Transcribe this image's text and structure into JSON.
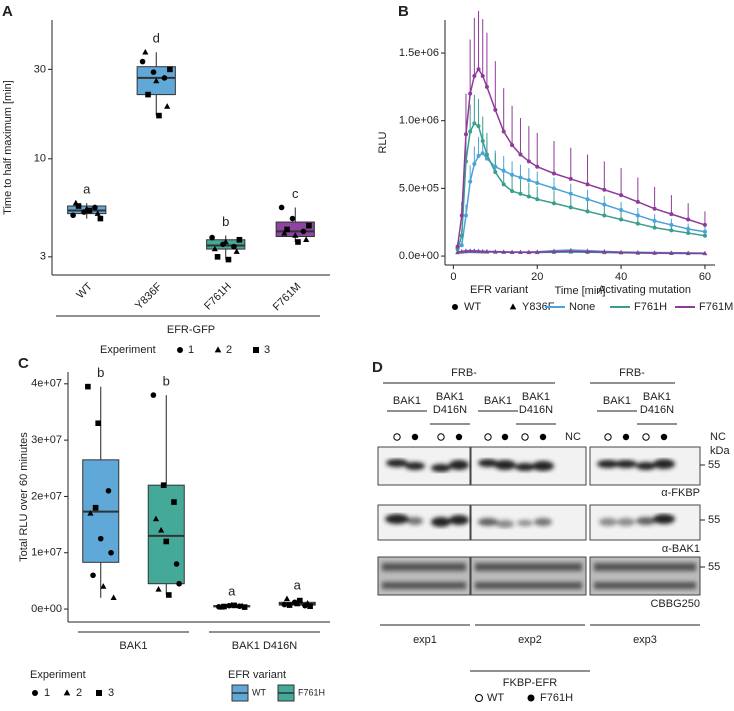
{
  "chart_data": [
    {
      "type": "box",
      "panel": "A",
      "y_label": "Time to half maximum [min]",
      "log_scale": true,
      "ylim": [
        2.4,
        55
      ],
      "yticks": [
        3,
        10,
        30
      ],
      "categories": [
        "WT",
        "Y836F",
        "F761H",
        "F761M"
      ],
      "boxes": [
        {
          "min": 4.8,
          "q1": 5.1,
          "median": 5.3,
          "q3": 5.6,
          "max": 5.8,
          "color": "#5fa8d8"
        },
        {
          "min": 17,
          "q1": 22,
          "median": 27,
          "q3": 31,
          "max": 37,
          "color": "#5fa8d8"
        },
        {
          "min": 2.9,
          "q1": 3.3,
          "median": 3.45,
          "q3": 3.7,
          "max": 3.9,
          "color": "#45a99a"
        },
        {
          "min": 3.6,
          "q1": 3.85,
          "median": 4.1,
          "q3": 4.6,
          "max": 5.5,
          "color": "#8e44a0"
        }
      ],
      "points": [
        {
          "values": [
            5.0,
            5.2,
            5.5,
            5.8,
            5.4,
            5.1,
            5.6,
            5.3,
            4.8
          ],
          "experiment": [
            1,
            1,
            1,
            2,
            2,
            2,
            3,
            3,
            3
          ]
        },
        {
          "values": [
            33,
            29,
            27,
            37,
            26,
            19,
            22,
            17,
            30
          ],
          "experiment": [
            1,
            1,
            1,
            2,
            2,
            2,
            3,
            3,
            3
          ]
        },
        {
          "values": [
            3.8,
            3.5,
            3.4,
            3.3,
            3.6,
            3.2,
            3.0,
            2.9,
            3.7
          ],
          "experiment": [
            1,
            1,
            1,
            2,
            2,
            2,
            3,
            3,
            3
          ]
        },
        {
          "values": [
            5.5,
            4.8,
            4.1,
            4.0,
            3.9,
            3.7,
            4.2,
            3.6,
            4.4
          ],
          "experiment": [
            1,
            1,
            1,
            2,
            2,
            2,
            3,
            3,
            3
          ]
        }
      ],
      "letters": [
        "a",
        "d",
        "b",
        "c"
      ],
      "group_label": "EFR-GFP",
      "legend": {
        "title": "Experiment",
        "labels": [
          "1",
          "2",
          "3"
        ]
      }
    },
    {
      "type": "line",
      "panel": "B",
      "x_label": "Time [min]",
      "y_label": "RLU",
      "xlim": [
        -2,
        62.4
      ],
      "xticks": [
        0,
        20,
        40,
        60
      ],
      "ylim": [
        -66000,
        1744000
      ],
      "yticks": [
        {
          "value": 0,
          "label": "0.0e+00"
        },
        {
          "value": 500000,
          "label": "5.0e+05"
        },
        {
          "value": 1000000,
          "label": "1.0e+06"
        },
        {
          "value": 1500000,
          "label": "1.5e+06"
        }
      ],
      "x": [
        1,
        2,
        3,
        4,
        5,
        6,
        7,
        8,
        10,
        12,
        14,
        16,
        18,
        20,
        24,
        28,
        32,
        36,
        40,
        44,
        48,
        52,
        56,
        60
      ],
      "series": [
        {
          "name": "None",
          "color": "#4aa3d9",
          "values": [
            60000,
            80000,
            300000,
            550000,
            680000,
            740000,
            760000,
            720000,
            660000,
            630000,
            600000,
            580000,
            560000,
            540000,
            500000,
            460000,
            420000,
            380000,
            340000,
            300000,
            260000,
            230000,
            200000,
            180000
          ],
          "errors": [
            20000,
            30000,
            80000,
            120000,
            130000,
            140000,
            140000,
            130000,
            120000,
            110000,
            100000,
            95000,
            90000,
            85000,
            80000,
            75000,
            70000,
            65000,
            60000,
            55000,
            50000,
            45000,
            40000,
            38000
          ],
          "values_y836f": [
            30000,
            35000,
            40000,
            40000,
            40000,
            38000,
            36000,
            35000,
            34000,
            32000,
            30000,
            30000,
            30000,
            32000,
            40000,
            45000,
            40000,
            35000,
            30000,
            28000,
            26000,
            25000,
            24000,
            22000
          ]
        },
        {
          "name": "F761H",
          "color": "#3a9e8d",
          "values": [
            50000,
            150000,
            700000,
            920000,
            980000,
            960000,
            850000,
            750000,
            620000,
            530000,
            480000,
            460000,
            440000,
            420000,
            390000,
            360000,
            330000,
            300000,
            270000,
            240000,
            210000,
            190000,
            170000,
            150000
          ],
          "errors": [
            20000,
            50000,
            150000,
            200000,
            210000,
            200000,
            180000,
            160000,
            140000,
            120000,
            110000,
            105000,
            100000,
            95000,
            90000,
            85000,
            80000,
            75000,
            70000,
            65000,
            60000,
            55000,
            50000,
            45000
          ],
          "values_y836f": [
            25000,
            30000,
            32000,
            34000,
            33000,
            32000,
            31000,
            30000,
            29000,
            28000,
            27000,
            27000,
            26000,
            26000,
            28000,
            30000,
            28000,
            26000,
            24000,
            22000,
            21000,
            20000,
            19000,
            18000
          ]
        },
        {
          "name": "F761M",
          "color": "#8e3a9a",
          "values": [
            70000,
            300000,
            900000,
            1200000,
            1330000,
            1380000,
            1330000,
            1250000,
            1080000,
            920000,
            820000,
            750000,
            700000,
            660000,
            610000,
            570000,
            530000,
            490000,
            450000,
            400000,
            350000,
            310000,
            270000,
            230000
          ],
          "errors": [
            30000,
            100000,
            300000,
            400000,
            430000,
            430000,
            420000,
            400000,
            360000,
            320000,
            290000,
            270000,
            260000,
            250000,
            240000,
            230000,
            220000,
            210000,
            200000,
            180000,
            160000,
            140000,
            120000,
            100000
          ],
          "values_y836f": [
            28000,
            32000,
            36000,
            37000,
            36000,
            35000,
            34000,
            33000,
            32000,
            30000,
            29000,
            28000,
            28000,
            29000,
            33000,
            36000,
            33000,
            30000,
            27000,
            25000,
            23000,
            22000,
            21000,
            20000
          ]
        }
      ],
      "shape_legend": {
        "title": "EFR variant",
        "labels": [
          "WT",
          "Y836F"
        ]
      },
      "color_legend_title": "Activating mutation"
    },
    {
      "type": "box",
      "panel": "C",
      "y_label": "Total RLU over 60 minutes",
      "ylim": [
        -2300000,
        42100000
      ],
      "yticks": [
        {
          "value": 0,
          "label": "0e+00"
        },
        {
          "value": 10000000,
          "label": "1e+07"
        },
        {
          "value": 20000000,
          "label": "2e+07"
        },
        {
          "value": 30000000,
          "label": "3e+07"
        },
        {
          "value": 40000000,
          "label": "4e+07"
        }
      ],
      "groups": [
        "BAK1",
        "BAK1 D416N"
      ],
      "boxes": [
        {
          "min": 2000000,
          "q1": 8300000,
          "median": 17300000,
          "q3": 26500000,
          "max": 39500000,
          "color": "#5fa8d8"
        },
        {
          "min": 2500000,
          "q1": 4500000,
          "median": 13000000,
          "q3": 22000000,
          "max": 38000000,
          "color": "#45a99a"
        },
        {
          "min": 300000,
          "q1": 400000,
          "median": 500000,
          "q3": 600000,
          "max": 700000,
          "color": "#5fa8d8"
        },
        {
          "min": 500000,
          "q1": 700000,
          "median": 900000,
          "q3": 1200000,
          "max": 1800000,
          "color": "#45a99a"
        }
      ],
      "points": [
        {
          "values": [
            39500000,
            33000000,
            21000000,
            17000000,
            12500000,
            10000000,
            6000000,
            4000000,
            2000000,
            18000000
          ],
          "experiment": [
            3,
            3,
            1,
            2,
            1,
            1,
            1,
            2,
            2,
            3
          ]
        },
        {
          "values": [
            38000000,
            22000000,
            19000000,
            16000000,
            12000000,
            8000000,
            3500000,
            2500000,
            4500000,
            14000000
          ],
          "experiment": [
            1,
            3,
            3,
            2,
            3,
            1,
            2,
            3,
            1,
            2
          ]
        },
        {
          "values": [
            400000,
            600000,
            500000,
            300000,
            700000,
            550000,
            450000,
            650000,
            350000
          ],
          "experiment": [
            1,
            1,
            1,
            2,
            2,
            2,
            3,
            3,
            3
          ]
        },
        {
          "values": [
            800000,
            1200000,
            600000,
            1800000,
            900000,
            1000000,
            700000,
            1500000,
            500000
          ],
          "experiment": [
            1,
            1,
            1,
            2,
            2,
            2,
            3,
            3,
            3
          ]
        }
      ],
      "letters": [
        "b",
        "b",
        "a",
        "a"
      ],
      "legend": {
        "title": "Experiment",
        "labels": [
          "1",
          "2",
          "3"
        ]
      },
      "fill_legend": {
        "title": "EFR variant",
        "labels": [
          "WT",
          "F761H"
        ],
        "colors": [
          "#5fa8d8",
          "#45a99a"
        ]
      }
    }
  ],
  "blot": {
    "panel": "D",
    "frb": [
      "FRB-",
      "FRB-"
    ],
    "lanes": [
      [
        "BAK1"
      ],
      [
        "BAK1",
        "D416N"
      ],
      [
        "BAK1"
      ],
      [
        "BAK1",
        "D416N"
      ],
      [
        "BAK1"
      ],
      [
        "BAK1",
        "D416N"
      ]
    ],
    "nc": [
      "NC",
      "NC"
    ],
    "kda": "kDa",
    "markers": [
      55,
      55,
      55
    ],
    "antibodies": [
      "α-FKBP",
      "α-BAK1",
      "CBBG250"
    ],
    "experiments": [
      "exp1",
      "exp2",
      "exp3"
    ],
    "legend": {
      "title": "FKBP-EFR",
      "labels": [
        "WT",
        "F761H"
      ]
    }
  }
}
